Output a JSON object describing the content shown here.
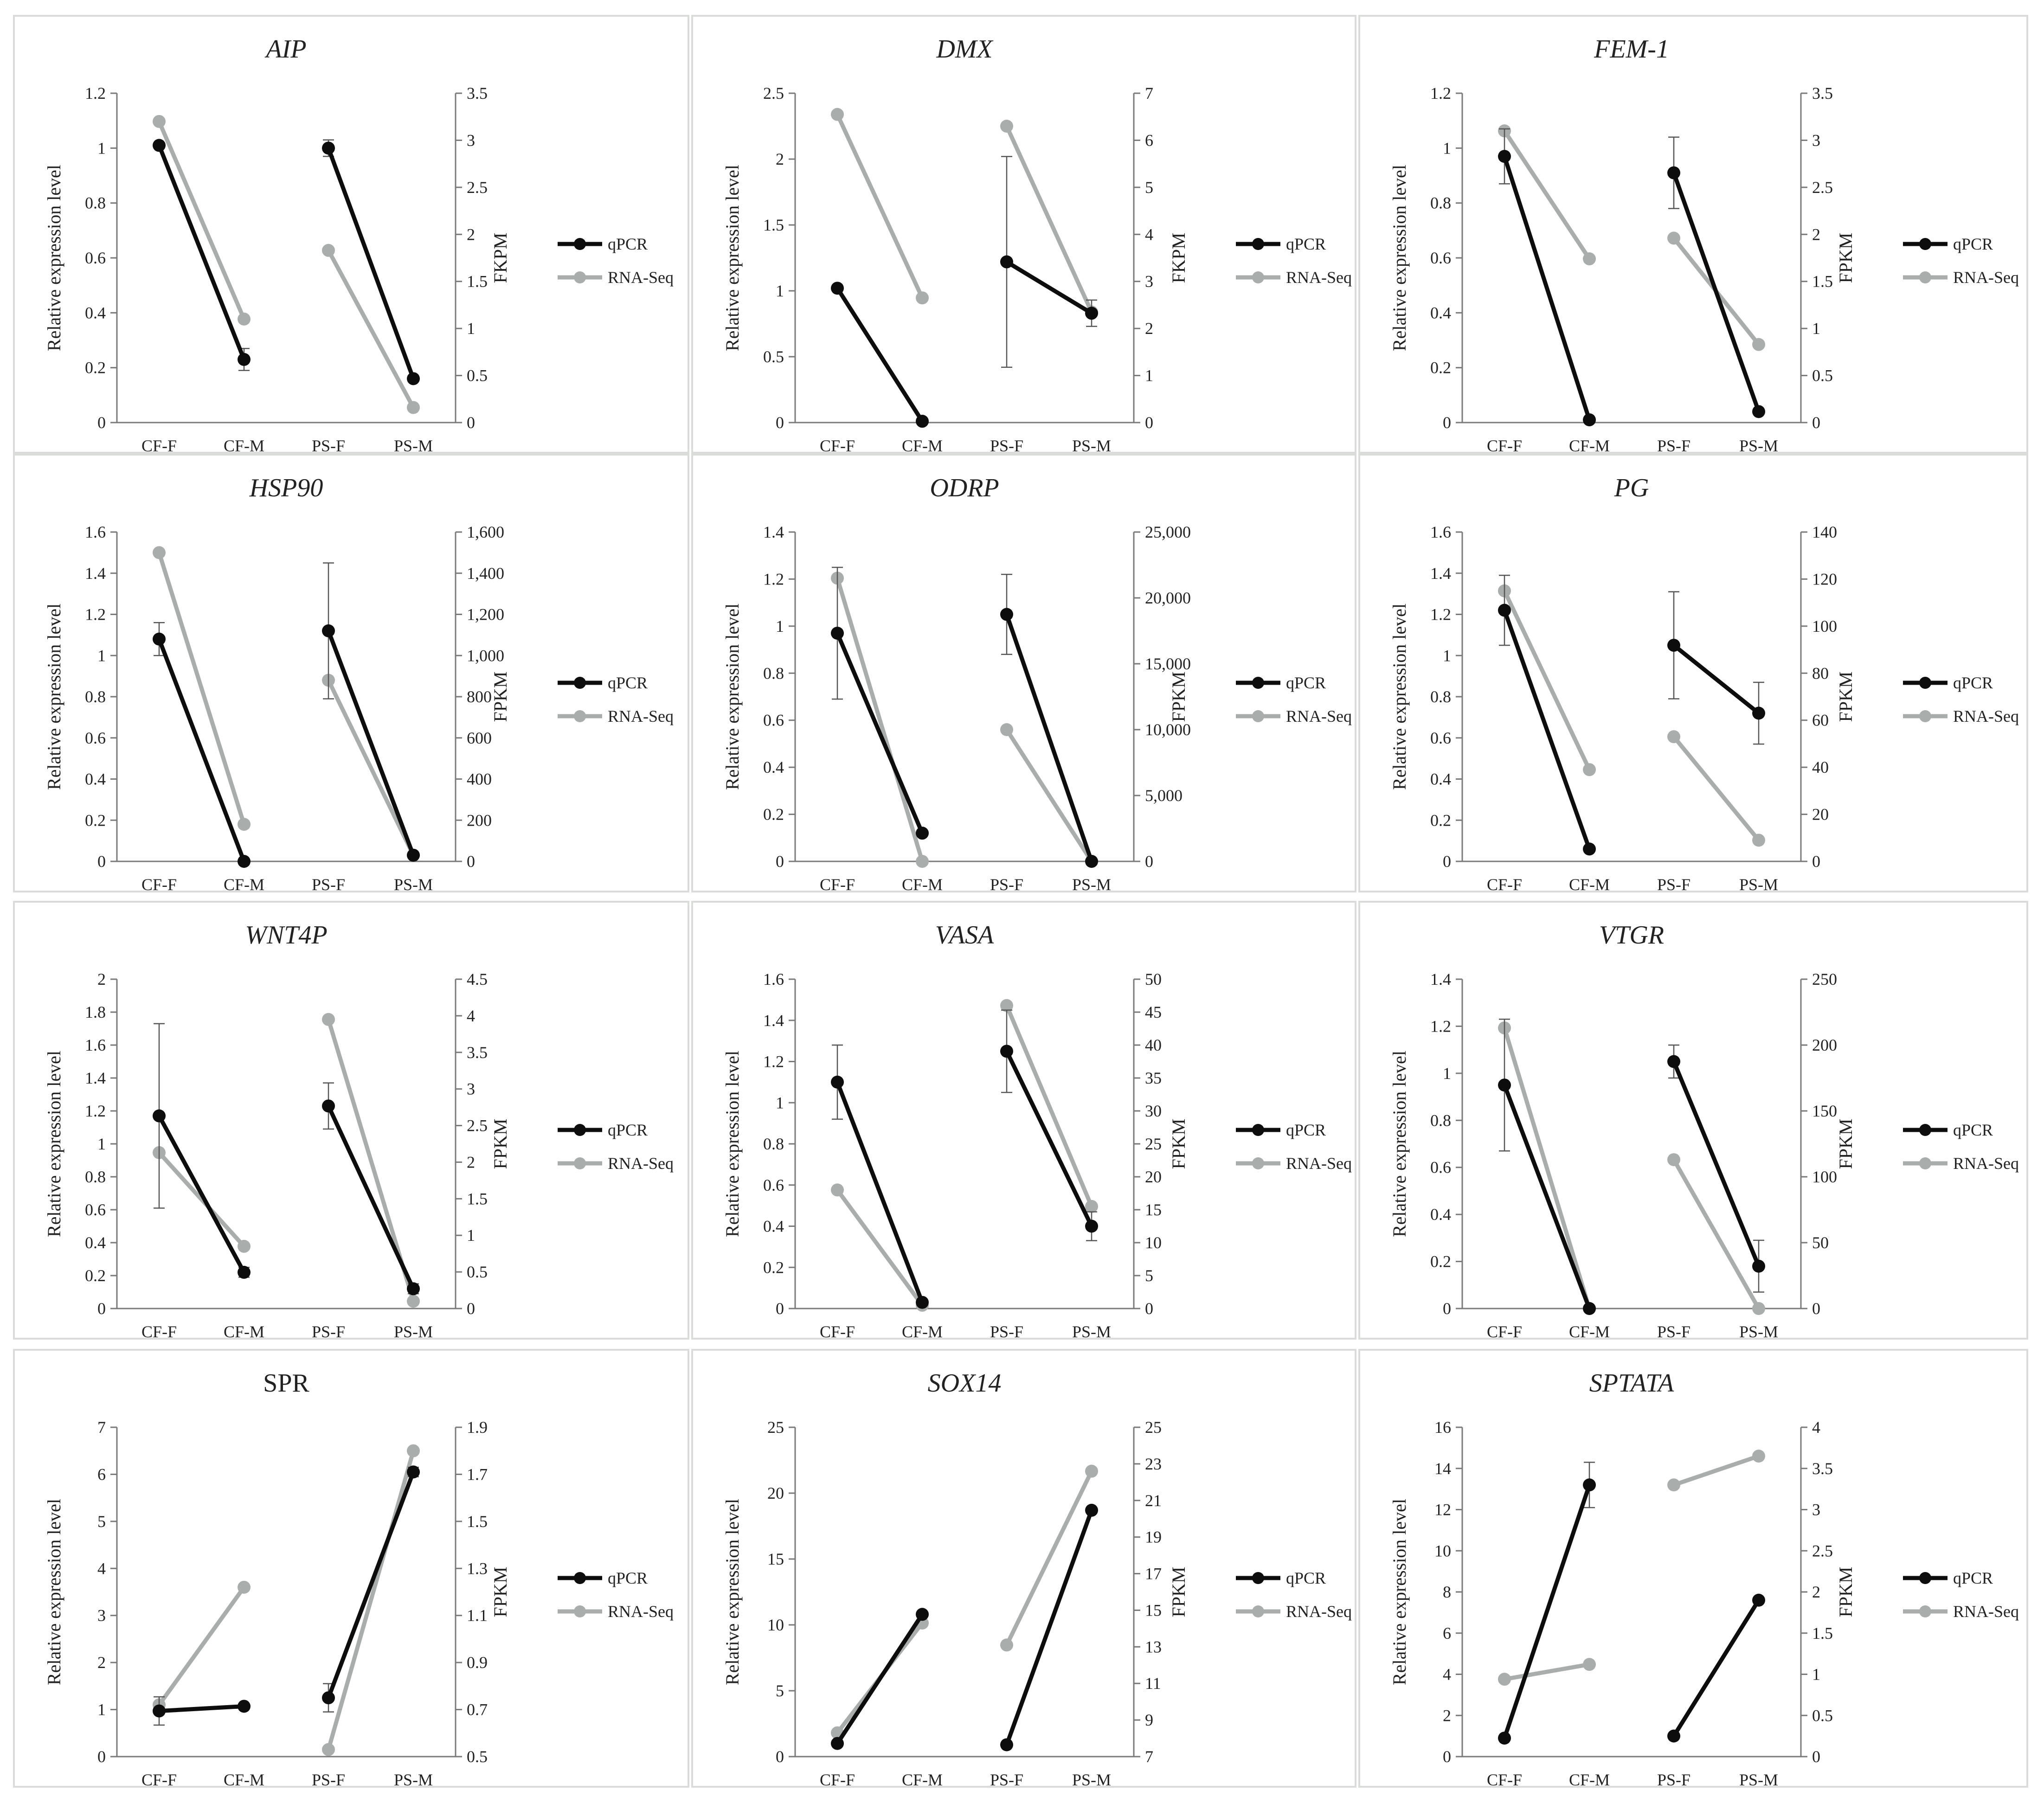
{
  "colors": {
    "qpcr": "#0d0d0d",
    "rnaseq": "#a9adac",
    "axis": "#7a7a7a",
    "border": "#d9dcd9"
  },
  "legend": {
    "qpcr_label": "qPCR",
    "rnaseq_label": "RNA-Seq"
  },
  "chart_data": [
    {
      "type": "line",
      "title": "AIP",
      "italic": true,
      "categories": [
        "CF-F",
        "CF-M",
        "PS-F",
        "PS-M"
      ],
      "ylabel": "Relative expression level",
      "y2label": "FKPM",
      "ylim": [
        0,
        1.2
      ],
      "yticks": [
        "0",
        "0.2",
        "0.4",
        "0.6",
        "0.8",
        "1",
        "1.2"
      ],
      "y2lim": [
        0,
        3.5
      ],
      "y2ticks": [
        "0",
        "0.5",
        "1",
        "1.5",
        "2",
        "2.5",
        "3",
        "3.5"
      ],
      "series": [
        {
          "name": "qPCR",
          "axis": "left",
          "values": [
            1.01,
            0.23,
            1.0,
            0.16
          ],
          "errors": [
            0.01,
            0.04,
            0.03,
            0.01
          ]
        },
        {
          "name": "RNA-Seq",
          "axis": "right",
          "values": [
            3.2,
            1.1,
            1.83,
            0.16
          ]
        }
      ]
    },
    {
      "type": "line",
      "title": "DMX",
      "italic": true,
      "categories": [
        "CF-F",
        "CF-M",
        "PS-F",
        "PS-M"
      ],
      "ylabel": "Relative expression level",
      "y2label": "FKPM",
      "ylim": [
        0,
        2.5
      ],
      "yticks": [
        "0",
        "0.5",
        "1",
        "1.5",
        "2",
        "2.5"
      ],
      "y2lim": [
        0,
        7
      ],
      "y2ticks": [
        "0",
        "1",
        "2",
        "3",
        "4",
        "5",
        "6",
        "7"
      ],
      "series": [
        {
          "name": "qPCR",
          "axis": "left",
          "values": [
            1.02,
            0.01,
            1.22,
            0.83
          ],
          "errors": [
            0.0,
            0.0,
            0.8,
            0.1
          ]
        },
        {
          "name": "RNA-Seq",
          "axis": "right",
          "values": [
            6.55,
            2.65,
            6.3,
            2.35
          ]
        }
      ]
    },
    {
      "type": "line",
      "title": "FEM-1",
      "italic": true,
      "categories": [
        "CF-F",
        "CF-M",
        "PS-F",
        "PS-M"
      ],
      "ylabel": "Relative expression level",
      "y2label": "FPKM",
      "ylim": [
        0,
        1.2
      ],
      "yticks": [
        "0",
        "0.2",
        "0.4",
        "0.6",
        "0.8",
        "1",
        "1.2"
      ],
      "y2lim": [
        0,
        3.5
      ],
      "y2ticks": [
        "0",
        "0.5",
        "1",
        "1.5",
        "2",
        "2.5",
        "3",
        "3.5"
      ],
      "series": [
        {
          "name": "qPCR",
          "axis": "left",
          "values": [
            0.97,
            0.01,
            0.91,
            0.04
          ],
          "errors": [
            0.1,
            0.0,
            0.13,
            0.0
          ]
        },
        {
          "name": "RNA-Seq",
          "axis": "right",
          "values": [
            3.1,
            1.74,
            1.96,
            0.83
          ]
        }
      ]
    },
    {
      "type": "line",
      "title": "HSP90",
      "italic": true,
      "categories": [
        "CF-F",
        "CF-M",
        "PS-F",
        "PS-M"
      ],
      "ylabel": "Relative expression level",
      "y2label": "FPKM",
      "ylim": [
        0,
        1.6
      ],
      "yticks": [
        "0",
        "0.2",
        "0.4",
        "0.6",
        "0.8",
        "1",
        "1.2",
        "1.4",
        "1.6"
      ],
      "y2lim": [
        0,
        1600
      ],
      "y2ticks": [
        "0",
        "200",
        "400",
        "600",
        "800",
        "1,000",
        "1,200",
        "1,400",
        "1,600"
      ],
      "series": [
        {
          "name": "qPCR",
          "axis": "left",
          "values": [
            1.08,
            0.0,
            1.12,
            0.03
          ],
          "errors": [
            0.08,
            0.0,
            0.33,
            0.0
          ]
        },
        {
          "name": "RNA-Seq",
          "axis": "right",
          "values": [
            1500,
            180,
            880,
            30
          ]
        }
      ]
    },
    {
      "type": "line",
      "title": "ODRP",
      "italic": true,
      "categories": [
        "CF-F",
        "CF-M",
        "PS-F",
        "PS-M"
      ],
      "ylabel": "Relative expression level",
      "y2label": "FPKM",
      "ylim": [
        0,
        1.4
      ],
      "yticks": [
        "0",
        "0.2",
        "0.4",
        "0.6",
        "0.8",
        "1",
        "1.2",
        "1.4"
      ],
      "y2lim": [
        0,
        25000
      ],
      "y2ticks": [
        "0",
        "5,000",
        "10,000",
        "15,000",
        "20,000",
        "25,000"
      ],
      "series": [
        {
          "name": "qPCR",
          "axis": "left",
          "values": [
            0.97,
            0.12,
            1.05,
            0.0
          ],
          "errors": [
            0.28,
            0.0,
            0.17,
            0.0
          ]
        },
        {
          "name": "RNA-Seq",
          "axis": "right",
          "values": [
            21500,
            0,
            10000,
            0
          ]
        }
      ]
    },
    {
      "type": "line",
      "title": "PG",
      "italic": true,
      "categories": [
        "CF-F",
        "CF-M",
        "PS-F",
        "PS-M"
      ],
      "ylabel": "Relative expression level",
      "y2label": "FPKM",
      "ylim": [
        0,
        1.6
      ],
      "yticks": [
        "0",
        "0.2",
        "0.4",
        "0.6",
        "0.8",
        "1",
        "1.2",
        "1.4",
        "1.6"
      ],
      "y2lim": [
        0,
        140
      ],
      "y2ticks": [
        "0",
        "20",
        "40",
        "60",
        "80",
        "100",
        "120",
        "140"
      ],
      "series": [
        {
          "name": "qPCR",
          "axis": "left",
          "values": [
            1.22,
            0.06,
            1.05,
            0.72
          ],
          "errors": [
            0.17,
            0.0,
            0.26,
            0.15
          ]
        },
        {
          "name": "RNA-Seq",
          "axis": "right",
          "values": [
            115,
            39,
            53,
            9
          ]
        }
      ]
    },
    {
      "type": "line",
      "title": "WNT4P",
      "italic": true,
      "categories": [
        "CF-F",
        "CF-M",
        "PS-F",
        "PS-M"
      ],
      "ylabel": "Relative expression level",
      "y2label": "FPKM",
      "ylim": [
        0,
        2
      ],
      "yticks": [
        "0",
        "0.2",
        "0.4",
        "0.6",
        "0.8",
        "1",
        "1.2",
        "1.4",
        "1.6",
        "1.8",
        "2"
      ],
      "y2lim": [
        0,
        4.5
      ],
      "y2ticks": [
        "0",
        "0.5",
        "1",
        "1.5",
        "2",
        "2.5",
        "3",
        "3.5",
        "4",
        "4.5"
      ],
      "series": [
        {
          "name": "qPCR",
          "axis": "left",
          "values": [
            1.17,
            0.22,
            1.23,
            0.12
          ],
          "errors": [
            0.56,
            0.03,
            0.14,
            0.03
          ]
        },
        {
          "name": "RNA-Seq",
          "axis": "right",
          "values": [
            2.13,
            0.85,
            3.95,
            0.1
          ]
        }
      ]
    },
    {
      "type": "line",
      "title": "VASA",
      "italic": true,
      "categories": [
        "CF-F",
        "CF-M",
        "PS-F",
        "PS-M"
      ],
      "ylabel": "Relative expression level",
      "y2label": "FPKM",
      "ylim": [
        0,
        1.6
      ],
      "yticks": [
        "0",
        "0.2",
        "0.4",
        "0.6",
        "0.8",
        "1",
        "1.2",
        "1.4",
        "1.6"
      ],
      "y2lim": [
        0,
        50
      ],
      "y2ticks": [
        "0",
        "5",
        "10",
        "15",
        "20",
        "25",
        "30",
        "35",
        "40",
        "45",
        "50"
      ],
      "series": [
        {
          "name": "qPCR",
          "axis": "left",
          "values": [
            1.1,
            0.03,
            1.25,
            0.4
          ],
          "errors": [
            0.18,
            0.0,
            0.2,
            0.07
          ]
        },
        {
          "name": "RNA-Seq",
          "axis": "right",
          "values": [
            18,
            0.5,
            46,
            15.5
          ]
        }
      ]
    },
    {
      "type": "line",
      "title": "VTGR",
      "italic": true,
      "categories": [
        "CF-F",
        "CF-M",
        "PS-F",
        "PS-M"
      ],
      "ylabel": "Relative expression level",
      "y2label": "FPKM",
      "ylim": [
        0,
        1.4
      ],
      "yticks": [
        "0",
        "0.2",
        "0.4",
        "0.6",
        "0.8",
        "1",
        "1.2",
        "1.4"
      ],
      "y2lim": [
        0,
        250
      ],
      "y2ticks": [
        "0",
        "50",
        "100",
        "150",
        "200",
        "250"
      ],
      "series": [
        {
          "name": "qPCR",
          "axis": "left",
          "values": [
            0.95,
            0.0,
            1.05,
            0.18
          ],
          "errors": [
            0.28,
            0.0,
            0.07,
            0.11
          ]
        },
        {
          "name": "RNA-Seq",
          "axis": "right",
          "values": [
            213,
            0,
            113,
            0
          ]
        }
      ]
    },
    {
      "type": "line",
      "title": "SPR",
      "italic": false,
      "categories": [
        "CF-F",
        "CF-M",
        "PS-F",
        "PS-M"
      ],
      "ylabel": "Relative expression level",
      "y2label": "FPKM",
      "ylim": [
        0,
        7
      ],
      "yticks": [
        "0",
        "1",
        "2",
        "3",
        "4",
        "5",
        "6",
        "7"
      ],
      "y2lim": [
        0.5,
        1.9
      ],
      "y2ticks": [
        "0.5",
        "0.7",
        "0.9",
        "1.1",
        "1.3",
        "1.5",
        "1.7",
        "1.9"
      ],
      "series": [
        {
          "name": "qPCR",
          "axis": "left",
          "values": [
            0.97,
            1.07,
            1.25,
            6.05
          ],
          "errors": [
            0.3,
            0.0,
            0.3,
            0.1
          ]
        },
        {
          "name": "RNA-Seq",
          "axis": "right",
          "values": [
            0.72,
            1.22,
            0.53,
            1.8
          ]
        }
      ]
    },
    {
      "type": "line",
      "title": "SOX14",
      "italic": true,
      "categories": [
        "CF-F",
        "CF-M",
        "PS-F",
        "PS-M"
      ],
      "ylabel": "Relative expression level",
      "y2label": "FPKM",
      "ylim": [
        0,
        25
      ],
      "yticks": [
        "0",
        "5",
        "10",
        "15",
        "20",
        "25"
      ],
      "y2lim": [
        7,
        25
      ],
      "y2ticks": [
        "7",
        "9",
        "11",
        "13",
        "15",
        "17",
        "19",
        "21",
        "23",
        "25"
      ],
      "series": [
        {
          "name": "qPCR",
          "axis": "left",
          "values": [
            1.0,
            10.8,
            0.9,
            18.7
          ],
          "errors": [
            0.0,
            0.0,
            0.0,
            0.0
          ]
        },
        {
          "name": "RNA-Seq",
          "axis": "right",
          "values": [
            8.3,
            14.3,
            13.1,
            22.6
          ]
        }
      ]
    },
    {
      "type": "line",
      "title": "SPTATA",
      "italic": true,
      "categories": [
        "CF-F",
        "CF-M",
        "PS-F",
        "PS-M"
      ],
      "ylabel": "Relative expression level",
      "y2label": "FPKM",
      "ylim": [
        0,
        16
      ],
      "yticks": [
        "0",
        "2",
        "4",
        "6",
        "8",
        "10",
        "12",
        "14",
        "16"
      ],
      "y2lim": [
        0,
        4
      ],
      "y2ticks": [
        "0",
        "0.5",
        "1",
        "1.5",
        "2",
        "2.5",
        "3",
        "3.5",
        "4"
      ],
      "series": [
        {
          "name": "qPCR",
          "axis": "left",
          "values": [
            0.9,
            13.2,
            1.0,
            7.6
          ],
          "errors": [
            0.0,
            1.1,
            0.0,
            0.0
          ]
        },
        {
          "name": "RNA-Seq",
          "axis": "right",
          "values": [
            0.94,
            1.12,
            3.3,
            3.65
          ]
        }
      ]
    }
  ]
}
